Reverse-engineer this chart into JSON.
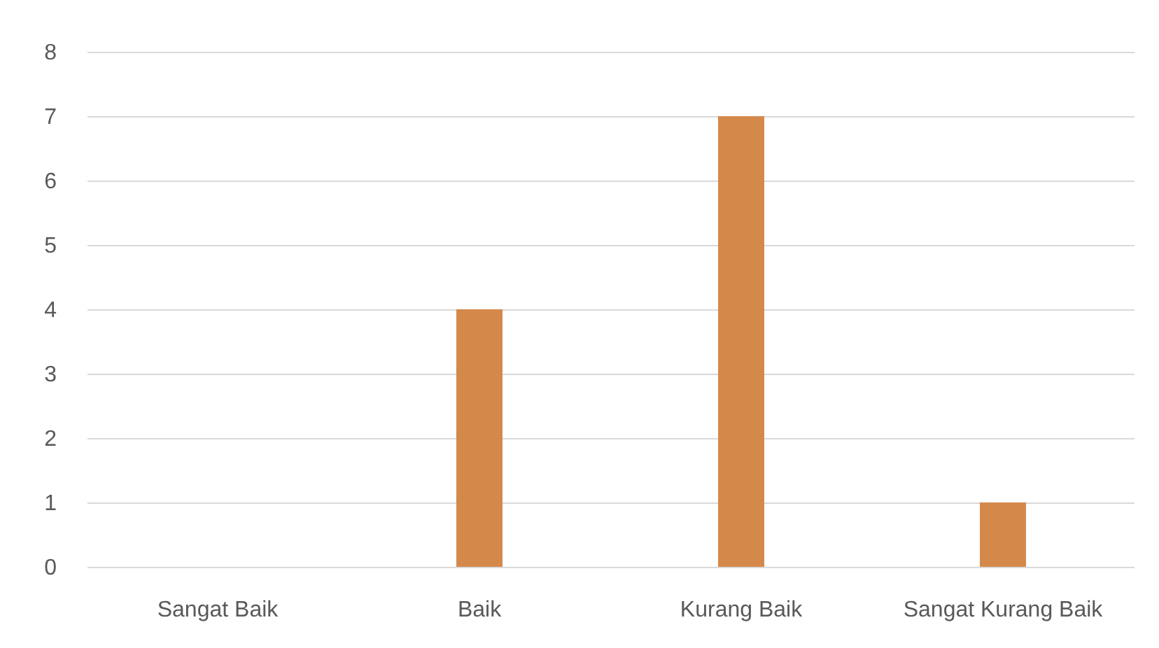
{
  "chart_data": {
    "type": "bar",
    "categories": [
      "Sangat Baik",
      "Baik",
      "Kurang Baik",
      "Sangat Kurang Baik"
    ],
    "values": [
      0,
      4,
      7,
      1
    ],
    "color": "#d4894b",
    "ylim": [
      0,
      8
    ],
    "yticks": [
      0,
      1,
      2,
      3,
      4,
      5,
      6,
      7,
      8
    ],
    "grid": "y"
  }
}
